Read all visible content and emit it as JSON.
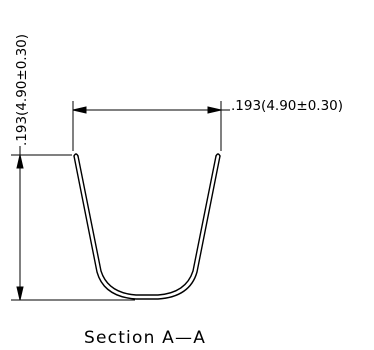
{
  "drawing": {
    "width_dimension": ".193(4.90±0.30)",
    "height_dimension": ".193(4.90±0.30)",
    "caption": "Section A—A"
  },
  "colors": {
    "line": "#000000",
    "background": "#ffffff"
  }
}
